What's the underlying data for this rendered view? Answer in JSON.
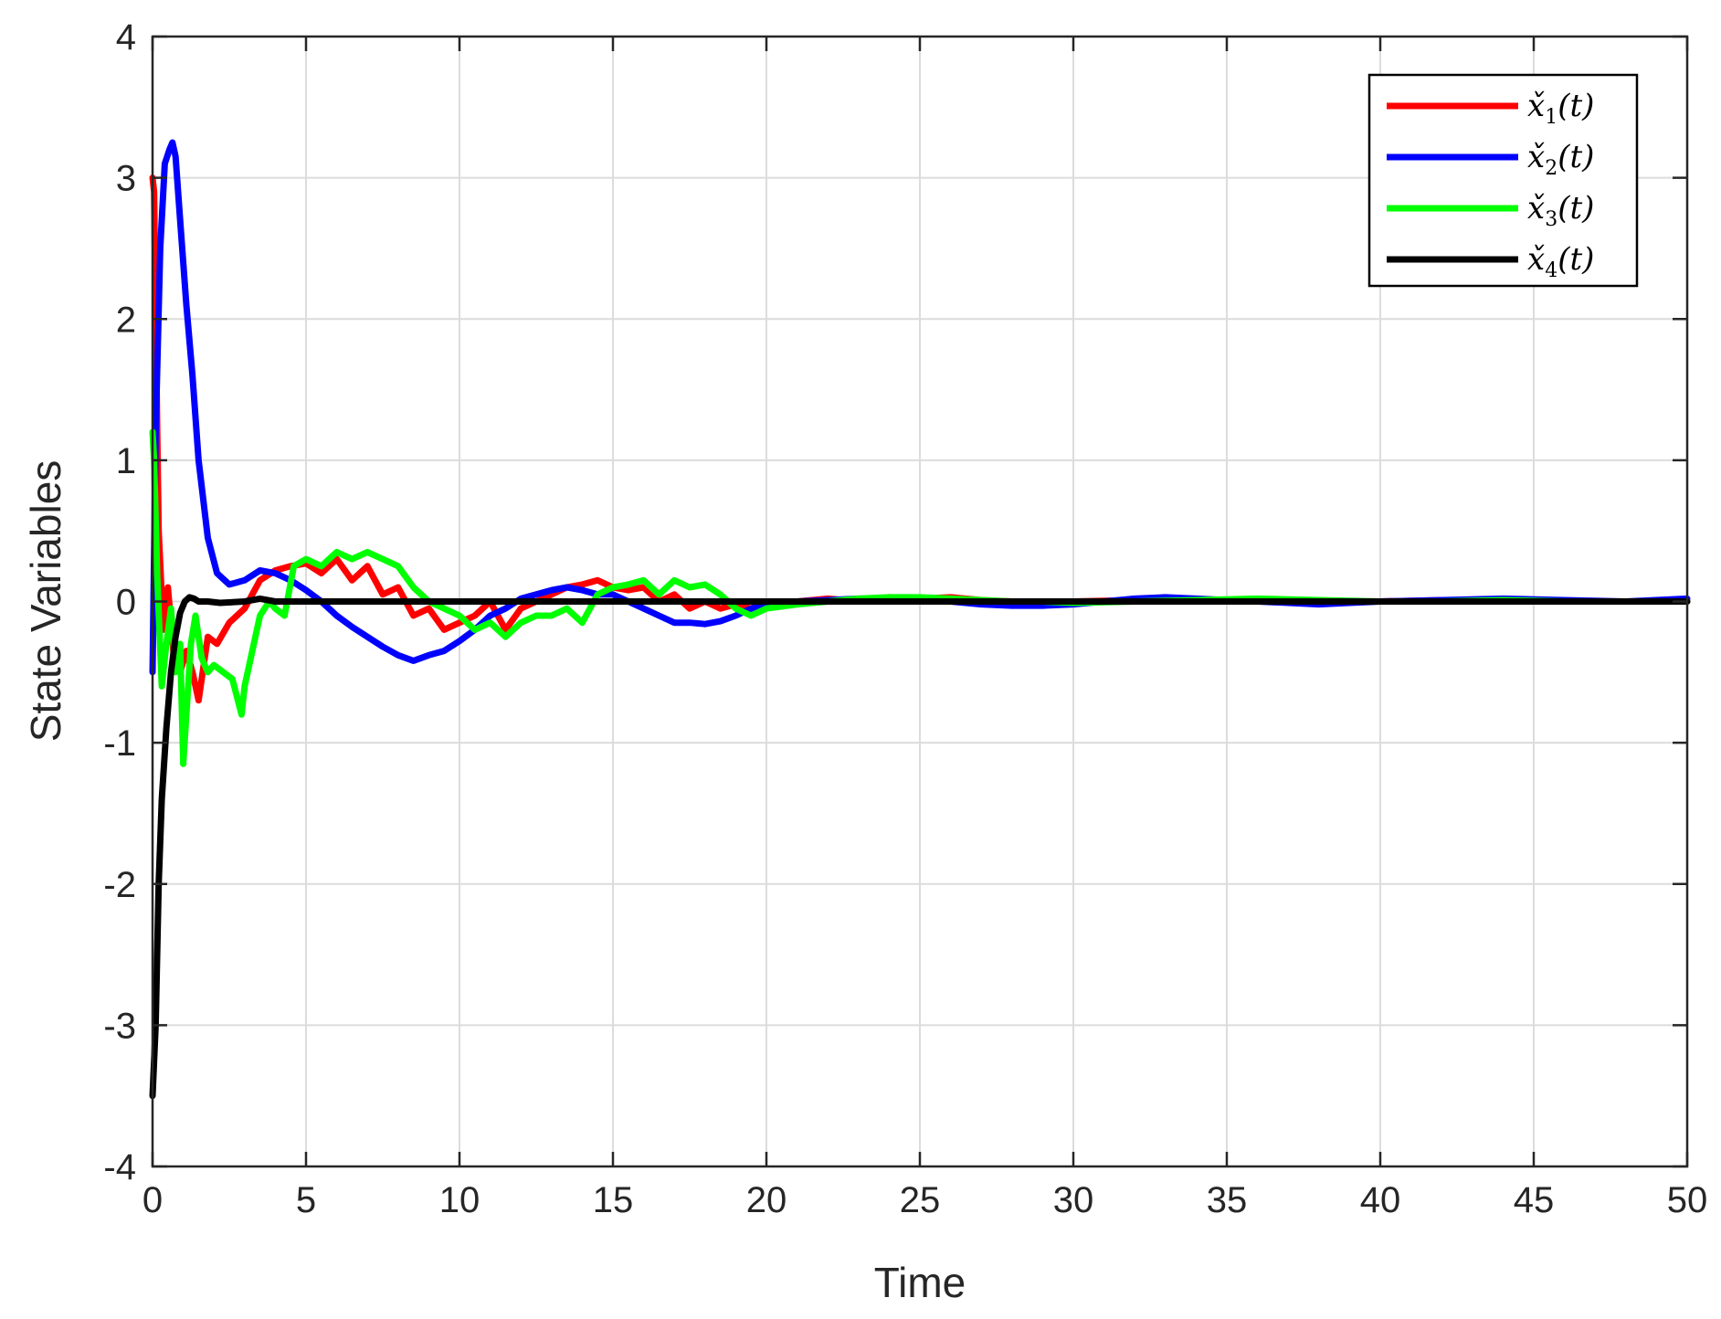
{
  "chart_data": {
    "type": "line",
    "title": "",
    "xlabel": "Time",
    "ylabel": "State Variables",
    "xlim": [
      0,
      50
    ],
    "ylim": [
      -4,
      4
    ],
    "xticks": [
      0,
      5,
      10,
      15,
      20,
      25,
      30,
      35,
      40,
      45,
      50
    ],
    "yticks": [
      -4,
      -3,
      -2,
      -1,
      0,
      1,
      2,
      3,
      4
    ],
    "xtick_labels": [
      "0",
      "5",
      "10",
      "15",
      "20",
      "25",
      "30",
      "35",
      "40",
      "45",
      "50"
    ],
    "ytick_labels": [
      "-4",
      "-3",
      "-2",
      "-1",
      "0",
      "1",
      "2",
      "3",
      "4"
    ],
    "grid": true,
    "legend_position": "top-right",
    "series": [
      {
        "name": "x̌₁(t)",
        "color": "#ff0000",
        "x": [
          0,
          0.05,
          0.1,
          0.2,
          0.35,
          0.5,
          0.7,
          0.9,
          1.1,
          1.3,
          1.5,
          1.8,
          2.1,
          2.5,
          3.0,
          3.5,
          4.0,
          4.5,
          5.0,
          5.5,
          6.0,
          6.5,
          7.0,
          7.5,
          8.0,
          8.5,
          9.0,
          9.5,
          10.0,
          10.5,
          11.0,
          11.5,
          12.0,
          12.5,
          13.0,
          13.5,
          14.0,
          14.5,
          15.0,
          15.5,
          16.0,
          16.5,
          17.0,
          17.5,
          18.0,
          18.5,
          19.0,
          19.5,
          20.0,
          21,
          22,
          23,
          24,
          25,
          26,
          27,
          28,
          29,
          30,
          32,
          34,
          36,
          38,
          40,
          42,
          44,
          46,
          48,
          50
        ],
        "y": [
          3.0,
          2.9,
          2.0,
          0.5,
          -0.2,
          0.1,
          -0.4,
          -0.5,
          -0.35,
          -0.5,
          -0.7,
          -0.25,
          -0.3,
          -0.15,
          -0.05,
          0.15,
          0.22,
          0.25,
          0.27,
          0.2,
          0.3,
          0.15,
          0.25,
          0.05,
          0.1,
          -0.1,
          -0.05,
          -0.2,
          -0.15,
          -0.1,
          0.0,
          -0.2,
          -0.05,
          0.0,
          0.05,
          0.1,
          0.12,
          0.15,
          0.1,
          0.08,
          0.1,
          0.0,
          0.05,
          -0.05,
          0.0,
          -0.05,
          -0.02,
          -0.05,
          0.0,
          0.0,
          0.02,
          0.0,
          0.03,
          0.02,
          0.03,
          0.01,
          0.0,
          -0.01,
          0.0,
          0.01,
          0.0,
          0.01,
          0.0,
          0.0,
          0.01,
          0.0,
          0.0,
          0.0,
          0.0
        ]
      },
      {
        "name": "x̌₂(t)",
        "color": "#0000ff",
        "x": [
          0,
          0.1,
          0.25,
          0.4,
          0.55,
          0.65,
          0.75,
          0.9,
          1.1,
          1.3,
          1.5,
          1.8,
          2.1,
          2.5,
          3.0,
          3.5,
          4.0,
          4.5,
          5.0,
          5.5,
          6.0,
          6.5,
          7.0,
          7.5,
          8.0,
          8.5,
          9.0,
          9.5,
          10.0,
          10.5,
          11.0,
          11.5,
          12.0,
          12.5,
          13.0,
          13.5,
          14.0,
          14.5,
          15.0,
          15.5,
          16.0,
          16.5,
          17.0,
          17.5,
          18.0,
          18.5,
          19.0,
          19.5,
          20.0,
          21,
          22,
          23,
          24,
          25,
          26,
          27,
          28,
          29,
          30,
          31,
          32,
          33,
          34,
          35,
          36,
          37,
          38,
          39,
          40,
          42,
          44,
          46,
          48,
          50
        ],
        "y": [
          -0.5,
          1.2,
          2.5,
          3.1,
          3.2,
          3.25,
          3.15,
          2.7,
          2.1,
          1.6,
          1.0,
          0.45,
          0.2,
          0.12,
          0.15,
          0.22,
          0.2,
          0.15,
          0.08,
          0.0,
          -0.1,
          -0.18,
          -0.25,
          -0.32,
          -0.38,
          -0.42,
          -0.38,
          -0.35,
          -0.28,
          -0.2,
          -0.1,
          -0.05,
          0.02,
          0.05,
          0.08,
          0.1,
          0.08,
          0.05,
          0.05,
          0.0,
          -0.05,
          -0.1,
          -0.15,
          -0.15,
          -0.16,
          -0.14,
          -0.1,
          -0.05,
          -0.02,
          0.0,
          0.01,
          0.02,
          0.02,
          0.02,
          0.0,
          -0.02,
          -0.03,
          -0.03,
          -0.02,
          0.0,
          0.02,
          0.03,
          0.02,
          0.01,
          0.0,
          -0.01,
          -0.02,
          -0.01,
          0.0,
          0.01,
          0.02,
          0.01,
          0.0,
          0.02
        ]
      },
      {
        "name": "x̌₃(t)",
        "color": "#00ff00",
        "x": [
          0,
          0.05,
          0.15,
          0.3,
          0.45,
          0.6,
          0.75,
          0.9,
          1.0,
          1.1,
          1.25,
          1.4,
          1.6,
          1.8,
          2.0,
          2.3,
          2.6,
          2.9,
          3.0,
          3.2,
          3.5,
          3.8,
          4.0,
          4.3,
          4.6,
          5.0,
          5.5,
          6.0,
          6.5,
          7.0,
          7.5,
          8.0,
          8.5,
          9.0,
          9.5,
          10.0,
          10.5,
          11.0,
          11.5,
          12.0,
          12.5,
          13.0,
          13.5,
          14.0,
          14.5,
          15.0,
          15.5,
          16.0,
          16.5,
          17.0,
          17.5,
          18.0,
          18.5,
          19.0,
          19.5,
          20.0,
          21,
          22,
          23,
          24,
          25,
          26,
          27,
          28,
          29,
          30,
          32,
          34,
          36,
          38,
          40,
          42,
          44,
          46,
          48,
          50
        ],
        "y": [
          1.2,
          1.0,
          0.2,
          -0.6,
          -0.3,
          -0.05,
          -0.5,
          -0.3,
          -1.15,
          -0.8,
          -0.3,
          -0.1,
          -0.4,
          -0.5,
          -0.45,
          -0.5,
          -0.55,
          -0.8,
          -0.6,
          -0.4,
          -0.1,
          0.0,
          -0.05,
          -0.1,
          0.25,
          0.3,
          0.25,
          0.35,
          0.3,
          0.35,
          0.3,
          0.25,
          0.1,
          0.0,
          -0.05,
          -0.1,
          -0.2,
          -0.15,
          -0.25,
          -0.15,
          -0.1,
          -0.1,
          -0.05,
          -0.15,
          0.05,
          0.1,
          0.12,
          0.15,
          0.05,
          0.15,
          0.1,
          0.12,
          0.05,
          -0.05,
          -0.1,
          -0.05,
          -0.02,
          0.0,
          0.02,
          0.03,
          0.03,
          0.02,
          0.01,
          0.0,
          0.0,
          -0.01,
          0.0,
          0.01,
          0.02,
          0.01,
          0.0,
          0.0,
          0.01,
          0.0,
          0.0,
          0.0
        ]
      },
      {
        "name": "x̌₄(t)",
        "color": "#000000",
        "x": [
          0,
          0.1,
          0.2,
          0.3,
          0.45,
          0.6,
          0.75,
          0.9,
          1.05,
          1.2,
          1.35,
          1.5,
          1.8,
          2.2,
          3.0,
          3.5,
          4.0,
          5,
          10,
          15,
          20,
          25,
          30,
          35,
          40,
          45,
          50
        ],
        "y": [
          -3.5,
          -3.0,
          -2.0,
          -1.4,
          -0.9,
          -0.5,
          -0.25,
          -0.08,
          0.0,
          0.03,
          0.02,
          0.0,
          0.0,
          -0.01,
          0.0,
          0.02,
          0.0,
          0.0,
          0.0,
          0.0,
          0.0,
          0.0,
          0.0,
          0.0,
          0.0,
          0.0,
          0.0
        ]
      }
    ]
  },
  "legend": {
    "entries": [
      {
        "symbol": "x̌",
        "subscript": "1",
        "suffix": "(t)"
      },
      {
        "symbol": "x̌",
        "subscript": "2",
        "suffix": "(t)"
      },
      {
        "symbol": "x̌",
        "subscript": "3",
        "suffix": "(t)"
      },
      {
        "symbol": "x̌",
        "subscript": "4",
        "suffix": "(t)"
      }
    ]
  }
}
